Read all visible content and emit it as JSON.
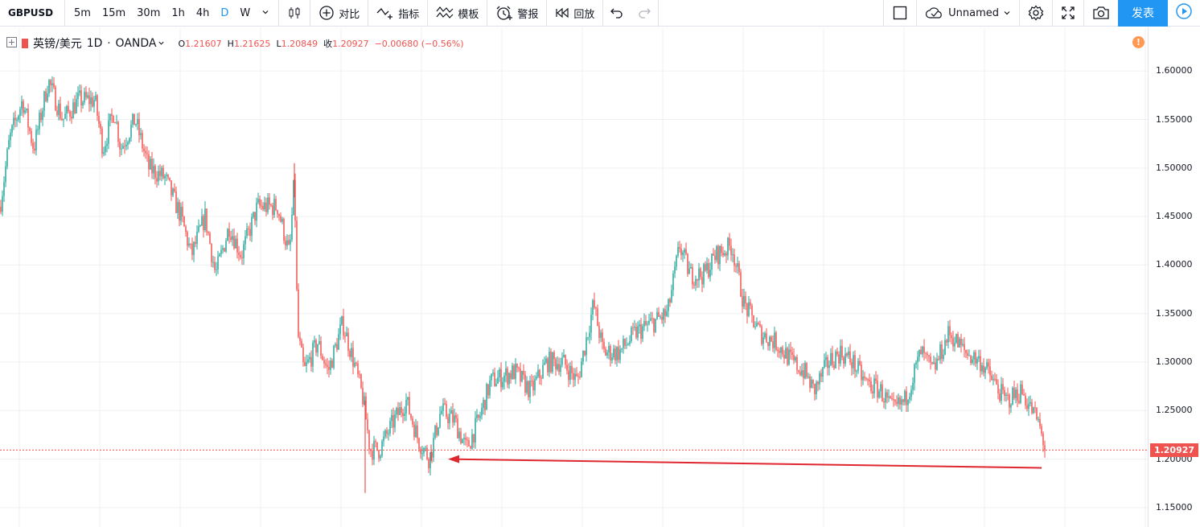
{
  "toolbar": {
    "symbol": "GBPUSD",
    "intervals": [
      "5m",
      "15m",
      "30m",
      "1h",
      "4h",
      "D",
      "W"
    ],
    "active_interval": "D",
    "compare_label": "对比",
    "indicators_label": "指标",
    "templates_label": "模板",
    "alert_label": "警报",
    "replay_label": "回放",
    "layout_name": "Unnamed",
    "publish_label": "发表",
    "icons": [
      "chevron-down-icon",
      "candles-icon",
      "plus-circle-icon",
      "indicator-icon",
      "template-icon",
      "alarm-icon",
      "replay-icon",
      "undo-icon",
      "redo-icon",
      "square-icon",
      "cloud-icon",
      "gear-icon",
      "fullscreen-icon",
      "camera-icon",
      "play-icon"
    ],
    "accent_color": "#2196f3"
  },
  "legend": {
    "pair": "英镑/美元",
    "interval": "1D",
    "broker": "OANDA",
    "open_label": "O",
    "open": "1.21607",
    "high_label": "H",
    "high": "1.21625",
    "low_label": "L",
    "low": "1.20849",
    "close_label": "收",
    "close": "1.20927",
    "change": "−0.00680 (−0.56%)"
  },
  "warning_glyph": "!",
  "chart_data": {
    "type": "candlestick",
    "symbol": "GBPUSD",
    "ylim": [
      1.13,
      1.645
    ],
    "yticks": [
      "1.60000",
      "1.55000",
      "1.50000",
      "1.45000",
      "1.40000",
      "1.35000",
      "1.30000",
      "1.25000",
      "1.20000",
      "1.15000"
    ],
    "grid": true,
    "up_color": "#26a69a",
    "down_color": "#ef5350",
    "last_price": 1.20927,
    "last_price_label": "1.20927",
    "path_points": [
      [
        0,
        1.46
      ],
      [
        12,
        1.53
      ],
      [
        28,
        1.57
      ],
      [
        42,
        1.52
      ],
      [
        60,
        1.59
      ],
      [
        78,
        1.55
      ],
      [
        98,
        1.57
      ],
      [
        118,
        1.57
      ],
      [
        128,
        1.52
      ],
      [
        142,
        1.56
      ],
      [
        150,
        1.52
      ],
      [
        168,
        1.55
      ],
      [
        185,
        1.5
      ],
      [
        205,
        1.49
      ],
      [
        225,
        1.45
      ],
      [
        238,
        1.41
      ],
      [
        255,
        1.45
      ],
      [
        268,
        1.39
      ],
      [
        285,
        1.44
      ],
      [
        300,
        1.41
      ],
      [
        320,
        1.46
      ],
      [
        345,
        1.46
      ],
      [
        360,
        1.41
      ],
      [
        366,
        1.49
      ],
      [
        370,
        1.33
      ],
      [
        378,
        1.29
      ],
      [
        395,
        1.32
      ],
      [
        408,
        1.29
      ],
      [
        426,
        1.34
      ],
      [
        440,
        1.3
      ],
      [
        452,
        1.26
      ],
      [
        460,
        1.21
      ],
      [
        472,
        1.21
      ],
      [
        490,
        1.24
      ],
      [
        505,
        1.26
      ],
      [
        520,
        1.22
      ],
      [
        534,
        1.2
      ],
      [
        548,
        1.25
      ],
      [
        565,
        1.24
      ],
      [
        580,
        1.21
      ],
      [
        595,
        1.24
      ],
      [
        610,
        1.28
      ],
      [
        640,
        1.29
      ],
      [
        660,
        1.27
      ],
      [
        680,
        1.3
      ],
      [
        700,
        1.3
      ],
      [
        718,
        1.28
      ],
      [
        738,
        1.36
      ],
      [
        750,
        1.31
      ],
      [
        770,
        1.31
      ],
      [
        790,
        1.33
      ],
      [
        810,
        1.34
      ],
      [
        830,
        1.35
      ],
      [
        845,
        1.42
      ],
      [
        858,
        1.39
      ],
      [
        875,
        1.39
      ],
      [
        890,
        1.41
      ],
      [
        910,
        1.42
      ],
      [
        925,
        1.36
      ],
      [
        945,
        1.33
      ],
      [
        965,
        1.32
      ],
      [
        985,
        1.3
      ],
      [
        1000,
        1.29
      ],
      [
        1012,
        1.27
      ],
      [
        1030,
        1.3
      ],
      [
        1045,
        1.31
      ],
      [
        1060,
        1.3
      ],
      [
        1075,
        1.28
      ],
      [
        1095,
        1.27
      ],
      [
        1110,
        1.25
      ],
      [
        1125,
        1.26
      ],
      [
        1145,
        1.31
      ],
      [
        1160,
        1.29
      ],
      [
        1180,
        1.33
      ],
      [
        1200,
        1.31
      ],
      [
        1220,
        1.3
      ],
      [
        1235,
        1.28
      ],
      [
        1250,
        1.26
      ],
      [
        1270,
        1.27
      ],
      [
        1290,
        1.24
      ],
      [
        1300,
        1.21
      ]
    ],
    "spikes": [
      [
        366,
        1.505,
        1.47
      ],
      [
        454,
        1.26,
        1.165
      ],
      [
        536,
        1.215,
        1.198
      ]
    ],
    "annotation": {
      "type": "arrow",
      "from": [
        1295,
        1.191
      ],
      "to": [
        557,
        1.2
      ],
      "color": "#e0262f"
    },
    "last_candle_x": 1300
  }
}
